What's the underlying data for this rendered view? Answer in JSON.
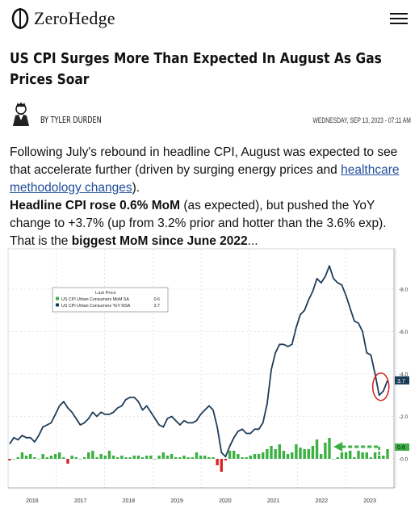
{
  "site": {
    "name": "ZeroHedge"
  },
  "article": {
    "title": "US CPI Surges More Than Expected In August As Gas Prices Soar",
    "author": "BY TYLER DURDEN",
    "date": "WEDNESDAY, SEP 13, 2023 - 07:11 AM",
    "p1_before": "Following July's rebound in headline CPI, August was expected to see that accelerate further (driven by surging energy prices and ",
    "p1_link": "healthcare methodology changes",
    "p1_after": ").",
    "p2_bold1": "Headline CPI rose 0.6% MoM",
    "p2_mid": " (as expected), but pushed the YoY change to +3.7% (up from 3.2% prior and hotter than the 3.6% exp). That is the ",
    "p2_bold2": "biggest MoM since June 2022",
    "p2_end": "..."
  },
  "chart_data": {
    "type": "line",
    "legend": {
      "title": "Last Price",
      "items": [
        {
          "label": "US CPI Urban Consumers MoM SA",
          "value": "0.6",
          "color": "#3cb043"
        },
        {
          "label": "US CPI Urban Consumers YoY NSA",
          "value": "3.7",
          "color": "#1d3c5a"
        }
      ]
    },
    "x_ticks": [
      "2016",
      "2017",
      "2018",
      "2019",
      "2020",
      "2021",
      "2022",
      "2023"
    ],
    "y_ticks": [
      "-8.0",
      "-6.0",
      "-4.0",
      "-2.0",
      "-0.0"
    ],
    "ylim": [
      -0.8,
      9.4
    ],
    "last_labels": {
      "yoy": "3.7",
      "mom": "0.6"
    },
    "series": [
      {
        "name": "US CPI Urban Consumers YoY NSA",
        "color": "#1d3c5a",
        "values": [
          0.7,
          1.0,
          0.9,
          1.1,
          1.0,
          1.0,
          0.8,
          1.1,
          1.5,
          1.6,
          1.7,
          2.1,
          2.5,
          2.7,
          2.4,
          2.2,
          1.9,
          1.6,
          1.7,
          1.9,
          2.2,
          2.0,
          2.2,
          2.1,
          2.1,
          2.2,
          2.4,
          2.5,
          2.8,
          2.9,
          2.9,
          2.7,
          2.3,
          2.5,
          2.2,
          1.9,
          1.6,
          1.5,
          1.9,
          2.0,
          1.8,
          1.6,
          1.8,
          1.7,
          1.7,
          1.8,
          2.1,
          2.3,
          2.5,
          2.3,
          1.5,
          0.3,
          0.1,
          0.6,
          1.0,
          1.3,
          1.4,
          1.2,
          1.2,
          1.4,
          1.4,
          1.7,
          2.6,
          4.2,
          5.0,
          5.4,
          5.4,
          5.3,
          5.4,
          6.2,
          6.8,
          7.0,
          7.5,
          7.9,
          8.5,
          8.3,
          8.6,
          9.1,
          8.5,
          8.3,
          8.2,
          7.7,
          7.1,
          6.5,
          6.4,
          6.0,
          5.0,
          4.9,
          4.0,
          3.0,
          3.2,
          3.7
        ]
      },
      {
        "name": "US CPI Urban Consumers MoM SA",
        "color": "#3cb043",
        "values": [
          -0.1,
          0.0,
          0.1,
          0.4,
          0.2,
          0.3,
          0.1,
          0.0,
          0.3,
          0.1,
          0.2,
          0.3,
          0.4,
          0.1,
          -0.3,
          0.2,
          0.1,
          0.0,
          0.1,
          0.4,
          0.5,
          0.1,
          0.3,
          0.2,
          0.5,
          0.2,
          0.1,
          0.2,
          0.1,
          0.1,
          0.2,
          0.2,
          0.1,
          0.2,
          0.2,
          0.0,
          0.2,
          0.4,
          0.2,
          0.3,
          0.1,
          0.1,
          0.2,
          0.1,
          0.1,
          0.4,
          0.2,
          0.2,
          0.1,
          0.1,
          -0.4,
          -0.8,
          -0.1,
          0.5,
          0.5,
          0.3,
          0.1,
          0.1,
          0.2,
          0.3,
          0.3,
          0.4,
          0.6,
          0.8,
          0.6,
          0.9,
          0.5,
          0.3,
          0.4,
          0.9,
          0.7,
          0.6,
          0.6,
          0.8,
          1.2,
          0.3,
          1.0,
          1.3,
          0.0,
          0.1,
          0.4,
          0.4,
          0.5,
          0.1,
          0.5,
          0.4,
          0.4,
          0.1,
          0.4,
          0.2,
          0.2,
          0.6
        ]
      }
    ]
  }
}
